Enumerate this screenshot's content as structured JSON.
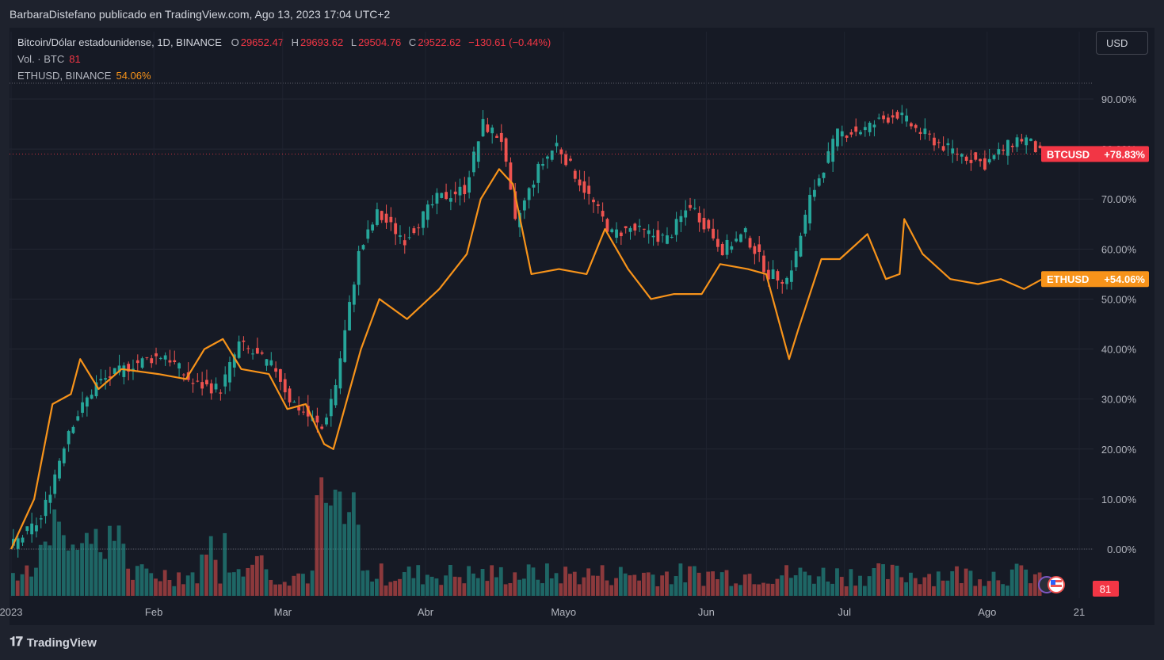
{
  "header": {
    "text": "BarbaraDistefano publicado en TradingView.com, Ago 13, 2023 17:04 UTC+2"
  },
  "legend": {
    "main_title": "Bitcoin/Dólar estadounidense, 1D, BINANCE",
    "o_label": "O",
    "o_value": "29652.47",
    "h_label": "H",
    "h_value": "29693.62",
    "l_label": "L",
    "l_value": "29504.76",
    "c_label": "C",
    "c_value": "29522.62",
    "change": "−130.61 (−0.44%)",
    "vol_label": "Vol. · BTC",
    "vol_value": "81",
    "eth_label": "ETHUSD, BINANCE",
    "eth_value": "54.06%"
  },
  "currency_button": "USD",
  "footer": {
    "brand": "TradingView"
  },
  "colors": {
    "up": "#26a69a",
    "down": "#ef5350",
    "eth": "#f7931a",
    "bg": "#161a25",
    "text": "#b2b5be"
  },
  "chart_data": {
    "type": "line",
    "percent_axis": {
      "ticks": [
        "90.00%",
        "80.00%",
        "70.00%",
        "60.00%",
        "50.00%",
        "40.00%",
        "30.00%",
        "20.00%",
        "10.00%",
        "0.00%"
      ],
      "ylim": [
        0,
        90
      ]
    },
    "x_ticks": [
      "2023",
      "Feb",
      "Mar",
      "Abr",
      "Mayo",
      "Jun",
      "Jul",
      "Ago",
      "21"
    ],
    "series": [
      {
        "name": "BTCUSD",
        "label": "BTCUSD",
        "badge": "+78.83%",
        "color": "#f23645",
        "x": [
          "2023-01-01",
          "2023-01-08",
          "2023-01-14",
          "2023-01-20",
          "2023-01-28",
          "2023-02-04",
          "2023-02-10",
          "2023-02-16",
          "2023-02-20",
          "2023-02-28",
          "2023-03-03",
          "2023-03-10",
          "2023-03-13",
          "2023-03-18",
          "2023-03-22",
          "2023-03-28",
          "2023-04-04",
          "2023-04-10",
          "2023-04-14",
          "2023-04-18",
          "2023-04-21",
          "2023-04-26",
          "2023-04-30",
          "2023-05-06",
          "2023-05-12",
          "2023-05-16",
          "2023-05-24",
          "2023-05-29",
          "2023-06-05",
          "2023-06-10",
          "2023-06-15",
          "2023-06-19",
          "2023-06-21",
          "2023-06-24",
          "2023-06-30",
          "2023-07-06",
          "2023-07-10",
          "2023-07-13",
          "2023-07-17",
          "2023-07-24",
          "2023-08-01",
          "2023-08-08",
          "2023-08-10",
          "2023-08-13"
        ],
        "values": [
          0,
          6,
          24,
          33,
          37,
          39,
          33,
          32,
          41,
          36,
          30,
          24,
          33,
          59,
          67,
          62,
          70,
          72,
          85,
          82,
          65,
          76,
          81,
          72,
          63,
          64,
          62,
          69,
          60,
          63,
          55,
          54,
          59,
          70,
          83,
          84,
          86,
          87,
          84,
          80,
          77,
          82,
          82,
          79
        ]
      },
      {
        "name": "ETHUSD",
        "label": "ETHUSD",
        "badge": "+54.06%",
        "color": "#f7931a",
        "x": [
          "2023-01-01",
          "2023-01-06",
          "2023-01-10",
          "2023-01-14",
          "2023-01-16",
          "2023-01-20",
          "2023-01-25",
          "2023-02-02",
          "2023-02-08",
          "2023-02-12",
          "2023-02-16",
          "2023-02-20",
          "2023-02-26",
          "2023-03-02",
          "2023-03-06",
          "2023-03-10",
          "2023-03-12",
          "2023-03-18",
          "2023-03-22",
          "2023-03-28",
          "2023-04-04",
          "2023-04-10",
          "2023-04-13",
          "2023-04-17",
          "2023-04-20",
          "2023-04-24",
          "2023-04-30",
          "2023-05-06",
          "2023-05-10",
          "2023-05-15",
          "2023-05-20",
          "2023-05-25",
          "2023-05-31",
          "2023-06-04",
          "2023-06-10",
          "2023-06-14",
          "2023-06-19",
          "2023-06-21",
          "2023-06-26",
          "2023-06-30",
          "2023-07-06",
          "2023-07-10",
          "2023-07-13",
          "2023-07-14",
          "2023-07-18",
          "2023-07-24",
          "2023-07-30",
          "2023-08-04",
          "2023-08-09",
          "2023-08-13"
        ],
        "values": [
          0,
          10,
          29,
          31,
          38,
          32,
          36,
          35,
          34,
          40,
          42,
          36,
          35,
          28,
          29,
          21,
          20,
          40,
          50,
          46,
          52,
          59,
          70,
          76,
          73,
          55,
          56,
          55,
          64,
          56,
          50,
          51,
          51,
          57,
          56,
          55,
          38,
          44,
          58,
          58,
          63,
          54,
          55,
          66,
          59,
          54,
          53,
          54,
          52,
          54
        ]
      }
    ],
    "volume": {
      "label": "Vol. · BTC",
      "last": "81"
    }
  }
}
